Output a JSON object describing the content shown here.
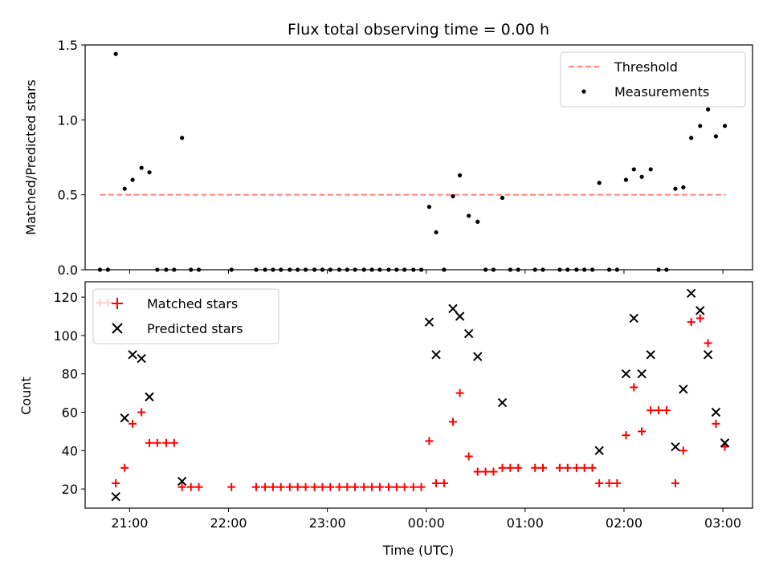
{
  "chart_data": [
    {
      "type": "scatter",
      "title": "Flux total observing time = 0.00 h",
      "xlabel": "",
      "ylabel": "Matched/Predicted stars",
      "xlim": [
        -3.45,
        3.3
      ],
      "ylim": [
        0,
        1.5
      ],
      "yticks": [
        0.0,
        0.5,
        1.0,
        1.5
      ],
      "ytick_labels": [
        "0.0",
        "0.5",
        "1.0",
        "1.5"
      ],
      "xticks": [
        -3,
        -2,
        -1,
        0,
        1,
        2,
        3
      ],
      "legend_position": "top-right",
      "colors": {
        "threshold": "#ff8080",
        "measurements": "#000000"
      },
      "threshold": {
        "name": "Threshold",
        "y": 0.5,
        "x_range": [
          -3.3,
          3.03
        ]
      },
      "series": [
        {
          "name": "Measurements",
          "x": [
            -3.3,
            -3.22,
            -3.14,
            -3.05,
            -2.97,
            -2.88,
            -2.8,
            -2.72,
            -2.63,
            -2.55,
            -2.47,
            -2.38,
            -2.3,
            -1.97,
            -1.72,
            -1.63,
            -1.55,
            -1.47,
            -1.38,
            -1.3,
            -1.22,
            -1.13,
            -1.05,
            -0.97,
            -0.88,
            -0.8,
            -0.72,
            -0.63,
            -0.55,
            -0.47,
            -0.38,
            -0.3,
            -0.22,
            -0.13,
            -0.05,
            0.03,
            0.1,
            0.18,
            0.27,
            0.34,
            0.43,
            0.52,
            0.6,
            0.68,
            0.77,
            0.85,
            0.93,
            1.1,
            1.18,
            1.35,
            1.43,
            1.52,
            1.6,
            1.68,
            1.75,
            1.85,
            1.93,
            2.02,
            2.1,
            2.18,
            2.27,
            2.35,
            2.43,
            2.52,
            2.6,
            2.68,
            2.77,
            2.85,
            2.93,
            3.02
          ],
          "y": [
            0,
            0,
            1.44,
            0.54,
            0.6,
            0.68,
            0.65,
            0,
            0,
            0,
            0.88,
            0,
            0,
            0,
            0,
            0,
            0,
            0,
            0,
            0,
            0,
            0,
            0,
            0,
            0,
            0,
            0,
            0,
            0,
            0,
            0,
            0,
            0,
            0,
            0,
            0.42,
            0.25,
            0,
            0.49,
            0.63,
            0.36,
            0.32,
            0,
            0,
            0.48,
            0,
            0,
            0,
            0,
            0,
            0,
            0,
            0,
            0,
            0.58,
            0,
            0,
            0.6,
            0.67,
            0.62,
            0.67,
            0,
            0,
            0.54,
            0.55,
            0.88,
            0.96,
            1.07,
            0.89,
            0.96
          ]
        }
      ]
    },
    {
      "type": "scatter",
      "title": "",
      "xlabel": "Time (UTC)",
      "ylabel": "Count",
      "xlim": [
        -3.45,
        3.3
      ],
      "ylim": [
        10,
        128
      ],
      "yticks": [
        20,
        40,
        60,
        80,
        100,
        120
      ],
      "xticks": [
        -3,
        -2,
        -1,
        0,
        1,
        2,
        3
      ],
      "xtick_labels": [
        "21:00",
        "22:00",
        "23:00",
        "00:00",
        "01:00",
        "02:00",
        "03:00"
      ],
      "legend_position": "top-left",
      "colors": {
        "matched": "#ff0000",
        "predicted": "#000000"
      },
      "series": [
        {
          "name": "Matched stars",
          "marker": "plus",
          "x": [
            -3.3,
            -3.22,
            -3.14,
            -3.05,
            -2.97,
            -2.88,
            -2.8,
            -2.72,
            -2.63,
            -2.55,
            -2.47,
            -2.38,
            -2.3,
            -1.97,
            -1.72,
            -1.63,
            -1.55,
            -1.47,
            -1.38,
            -1.3,
            -1.22,
            -1.13,
            -1.05,
            -0.97,
            -0.88,
            -0.8,
            -0.72,
            -0.63,
            -0.55,
            -0.47,
            -0.38,
            -0.3,
            -0.22,
            -0.13,
            -0.05,
            0.03,
            0.1,
            0.18,
            0.27,
            0.34,
            0.43,
            0.52,
            0.6,
            0.68,
            0.77,
            0.85,
            0.93,
            1.1,
            1.18,
            1.35,
            1.43,
            1.52,
            1.6,
            1.68,
            1.75,
            1.85,
            1.93,
            2.02,
            2.1,
            2.18,
            2.27,
            2.35,
            2.43,
            2.52,
            2.6,
            2.68,
            2.77,
            2.85,
            2.93,
            3.02
          ],
          "y": [
            117,
            117,
            23,
            31,
            54,
            60,
            44,
            44,
            44,
            44,
            21,
            21,
            21,
            21,
            21,
            21,
            21,
            21,
            21,
            21,
            21,
            21,
            21,
            21,
            21,
            21,
            21,
            21,
            21,
            21,
            21,
            21,
            21,
            21,
            21,
            45,
            23,
            23,
            55,
            70,
            37,
            29,
            29,
            29,
            31,
            31,
            31,
            31,
            31,
            31,
            31,
            31,
            31,
            31,
            23,
            23,
            23,
            48,
            73,
            50,
            61,
            61,
            61,
            23,
            40,
            107,
            109,
            96,
            54,
            42
          ]
        },
        {
          "name": "Predicted stars",
          "marker": "x",
          "x": [
            -3.14,
            -3.05,
            -2.97,
            -2.88,
            -2.8,
            -2.47,
            0.03,
            0.1,
            0.27,
            0.34,
            0.43,
            0.52,
            0.77,
            1.75,
            2.02,
            2.1,
            2.18,
            2.27,
            2.52,
            2.6,
            2.68,
            2.77,
            2.85,
            2.93,
            3.02
          ],
          "y": [
            16,
            57,
            90,
            88,
            68,
            24,
            107,
            90,
            114,
            110,
            101,
            89,
            65,
            40,
            80,
            109,
            80,
            90,
            42,
            72,
            122,
            113,
            90,
            60,
            44
          ]
        }
      ]
    }
  ]
}
